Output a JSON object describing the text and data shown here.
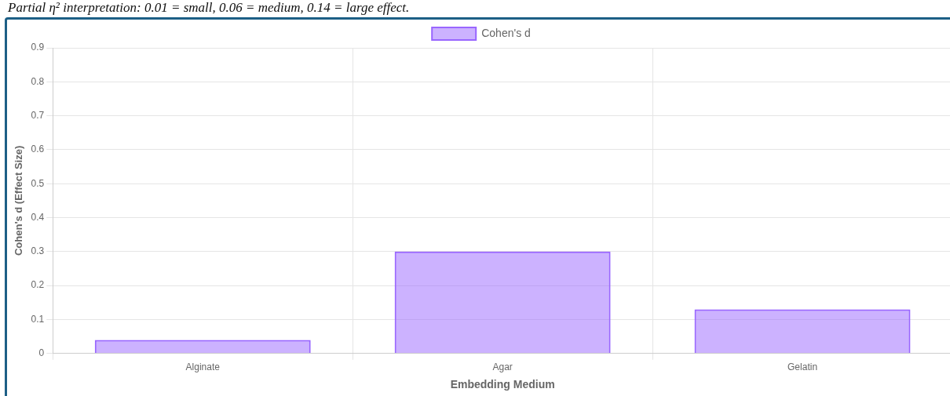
{
  "chart_data": {
    "type": "bar",
    "categories": [
      "Alginate",
      "Agar",
      "Gelatin"
    ],
    "series": [
      {
        "name": "Cohen's d",
        "color": "#9966ff",
        "values": [
          0.04,
          0.3,
          0.13
        ]
      }
    ],
    "xlabel": "Embedding Medium",
    "ylabel": "Cohen's d (Effect Size)",
    "annotations": [
      "Partial η² interpretation: 0.01 = small, 0.06 = medium, 0.14 = large effect."
    ],
    "ylim": [
      0,
      0.9
    ],
    "yticks": [
      0,
      0.1,
      0.2,
      0.3,
      0.4,
      0.5,
      0.6,
      0.7,
      0.8,
      0.9
    ],
    "grid": true,
    "legend": "top"
  }
}
